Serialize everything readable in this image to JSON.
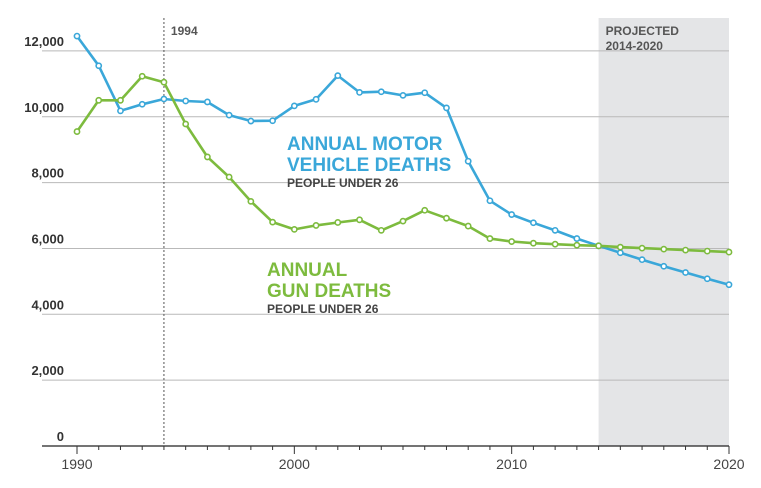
{
  "chart_data": {
    "type": "line",
    "xlim": [
      1990,
      2020
    ],
    "ylim": [
      0,
      13000
    ],
    "x_ticks": [
      1990,
      2000,
      2010,
      2020
    ],
    "y_ticks": [
      0,
      2000,
      4000,
      6000,
      8000,
      10000,
      12000
    ],
    "x_tick_labels": [
      "1990",
      "2000",
      "2010",
      "2020"
    ],
    "y_tick_labels": [
      "0",
      "2,000",
      "4,000",
      "6,000",
      "8,000",
      "10,000",
      "12,000"
    ],
    "grid": "horizontal",
    "reference_line": {
      "x": 1994,
      "label": "1994"
    },
    "projected_region": {
      "from": 2014,
      "to": 2020,
      "label_line1": "PROJECTED",
      "label_line2": "2014-2020",
      "color": "#e4e5e7"
    },
    "series": [
      {
        "name": "ANNUAL MOTOR VEHICLE DEATHS",
        "name_line1": "ANNUAL MOTOR",
        "name_line2": "VEHICLE DEATHS",
        "subtitle": "PEOPLE UNDER 26",
        "color": "#3aa7d9",
        "x": [
          1990,
          1991,
          1992,
          1993,
          1994,
          1995,
          1996,
          1997,
          1998,
          1999,
          2000,
          2001,
          2002,
          2003,
          2004,
          2005,
          2006,
          2007,
          2008,
          2009,
          2010,
          2011,
          2012,
          2013,
          2014,
          2015,
          2016,
          2017,
          2018,
          2019,
          2020
        ],
        "values": [
          12450,
          11550,
          10180,
          10380,
          10540,
          10480,
          10450,
          10050,
          9870,
          9880,
          10330,
          10530,
          11250,
          10740,
          10760,
          10650,
          10730,
          10270,
          8650,
          7450,
          7030,
          6780,
          6550,
          6300,
          6080,
          5870,
          5660,
          5460,
          5270,
          5080,
          4900
        ]
      },
      {
        "name": "ANNUAL GUN DEATHS",
        "name_line1": "ANNUAL",
        "name_line2": "GUN DEATHS",
        "subtitle": "PEOPLE UNDER 26",
        "color": "#7dbb3e",
        "x": [
          1990,
          1991,
          1992,
          1993,
          1994,
          1995,
          1996,
          1997,
          1998,
          1999,
          2000,
          2001,
          2002,
          2003,
          2004,
          2005,
          2006,
          2007,
          2008,
          2009,
          2010,
          2011,
          2012,
          2013,
          2014,
          2015,
          2016,
          2017,
          2018,
          2019,
          2020
        ],
        "values": [
          9550,
          10500,
          10500,
          11230,
          11050,
          9780,
          8780,
          8170,
          7430,
          6800,
          6580,
          6700,
          6790,
          6870,
          6550,
          6830,
          7160,
          6920,
          6680,
          6300,
          6210,
          6160,
          6130,
          6100,
          6080,
          6040,
          6010,
          5980,
          5950,
          5920,
          5890
        ]
      }
    ]
  }
}
